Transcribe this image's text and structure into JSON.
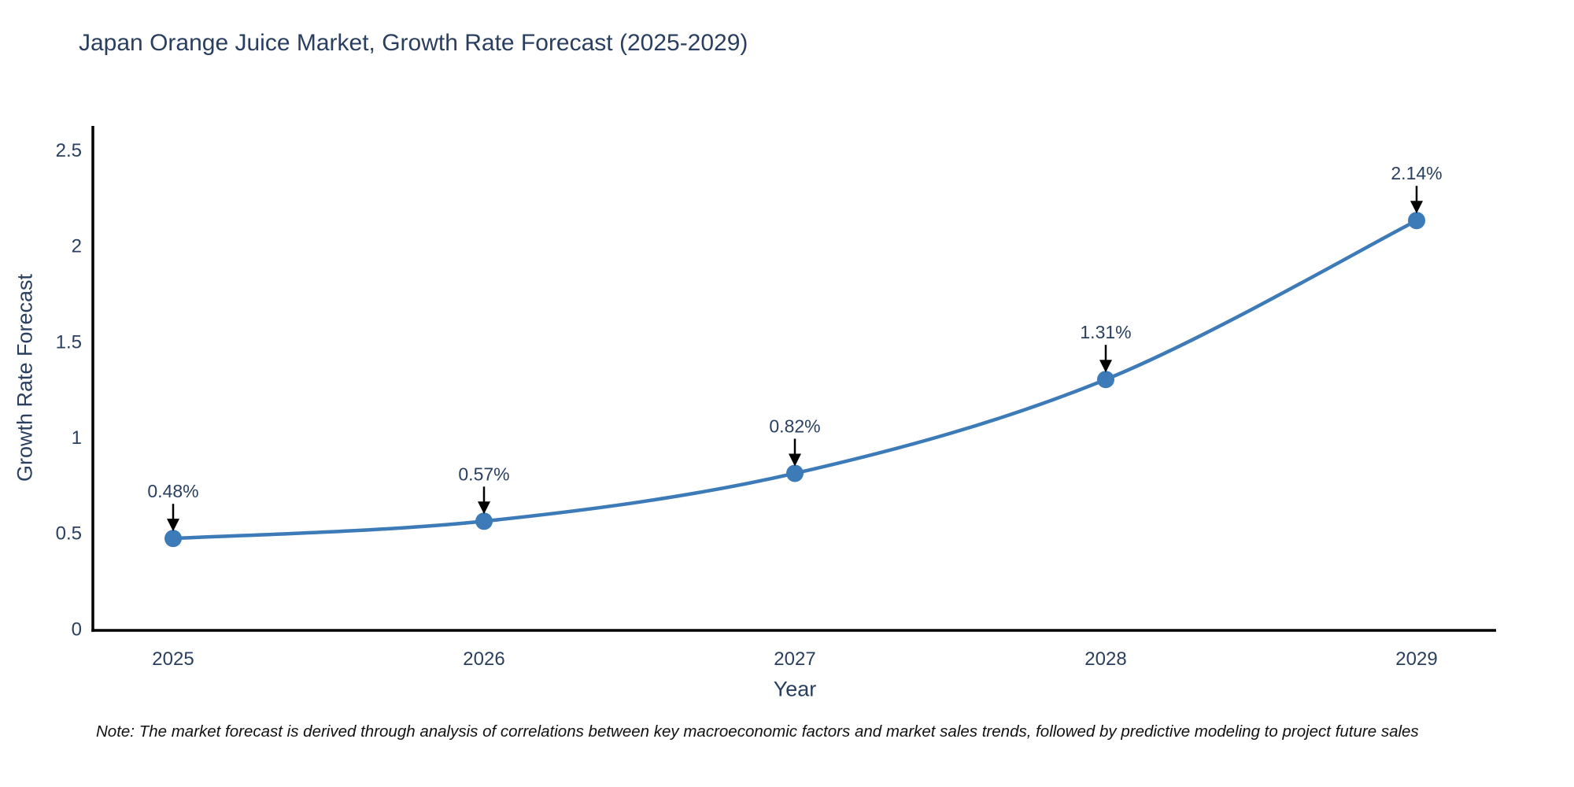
{
  "chart_data": {
    "type": "line",
    "title": "Japan Orange Juice Market, Growth Rate Forecast (2025-2029)",
    "xlabel": "Year",
    "ylabel": "Growth Rate Forecast",
    "x": [
      2025,
      2026,
      2027,
      2028,
      2029
    ],
    "series": [
      {
        "name": "Growth Rate Forecast",
        "values": [
          0.48,
          0.57,
          0.82,
          1.31,
          2.14
        ]
      }
    ],
    "point_labels": [
      "0.48%",
      "0.57%",
      "0.82%",
      "1.31%",
      "2.14%"
    ],
    "xticks": [
      "2025",
      "2026",
      "2027",
      "2028",
      "2029"
    ],
    "yticks": [
      "0",
      "0.5",
      "1",
      "1.5",
      "2",
      "2.5"
    ],
    "ytick_values": [
      0,
      0.5,
      1,
      1.5,
      2,
      2.5
    ],
    "ylim": [
      0,
      2.63
    ],
    "grid": false,
    "legend_position": "none",
    "line_shape": "spline",
    "annotation_style": "label-above-with-down-arrow",
    "colors": {
      "line": "#3d7bb8",
      "marker": "#3d7bb8",
      "axis": "#000000",
      "arrow": "#000000",
      "text": "#2a3f5f"
    }
  },
  "note": {
    "text": "Note: The market forecast is derived through analysis of correlations between key macroeconomic factors and market sales trends, followed by predictive modeling to project future sales"
  }
}
